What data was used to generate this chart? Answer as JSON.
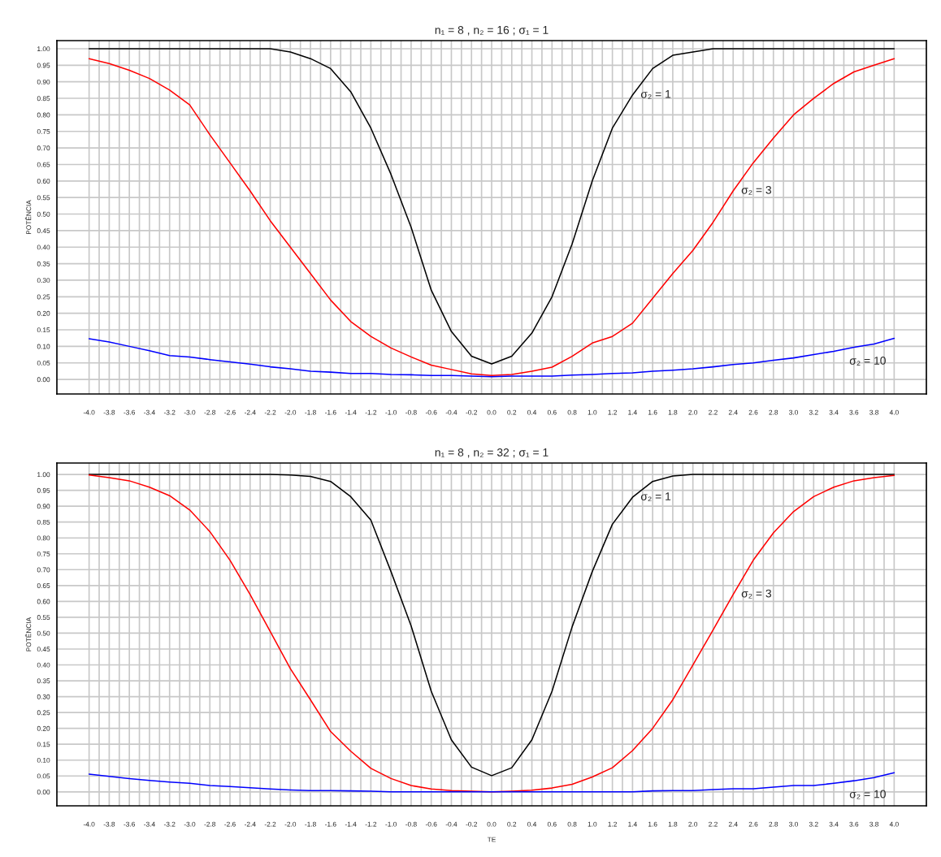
{
  "chart_data": [
    {
      "type": "line",
      "title": "n₁ = 8 , n₂ = 16 ; σ₁ = 1",
      "ylabel": "POTÊNCIA",
      "x": [
        -4.0,
        -3.8,
        -3.6,
        -3.4,
        -3.2,
        -3.0,
        -2.8,
        -2.6,
        -2.4,
        -2.2,
        -2.0,
        -1.8,
        -1.6,
        -1.4,
        -1.2,
        -1.0,
        -0.8,
        -0.6,
        -0.4,
        -0.2,
        0.0,
        0.2,
        0.4,
        0.6,
        0.8,
        1.0,
        1.2,
        1.4,
        1.6,
        1.8,
        2.0,
        2.2,
        2.4,
        2.6,
        2.8,
        3.0,
        3.2,
        3.4,
        3.6,
        3.8,
        4.0
      ],
      "series": [
        {
          "name": "σ₂ = 1",
          "color": "#000000",
          "values": [
            1.0,
            1.0,
            1.0,
            1.0,
            1.0,
            1.0,
            1.0,
            1.0,
            1.0,
            1.0,
            0.99,
            0.97,
            0.94,
            0.87,
            0.76,
            0.62,
            0.46,
            0.27,
            0.145,
            0.07,
            0.047,
            0.07,
            0.14,
            0.25,
            0.41,
            0.6,
            0.76,
            0.86,
            0.94,
            0.98,
            0.99,
            1.0,
            1.0,
            1.0,
            1.0,
            1.0,
            1.0,
            1.0,
            1.0,
            1.0,
            1.0
          ]
        },
        {
          "name": "σ₂ = 3",
          "color": "#ff0000",
          "values": [
            0.97,
            0.955,
            0.935,
            0.91,
            0.875,
            0.83,
            0.74,
            0.655,
            0.57,
            0.48,
            0.4,
            0.32,
            0.24,
            0.175,
            0.13,
            0.095,
            0.068,
            0.043,
            0.03,
            0.017,
            0.012,
            0.015,
            0.025,
            0.037,
            0.07,
            0.11,
            0.13,
            0.17,
            0.245,
            0.32,
            0.39,
            0.475,
            0.57,
            0.655,
            0.73,
            0.8,
            0.85,
            0.895,
            0.93,
            0.95,
            0.97
          ]
        },
        {
          "name": "σ₂ = 10",
          "color": "#0000ff",
          "values": [
            0.123,
            0.113,
            0.1,
            0.087,
            0.072,
            0.068,
            0.06,
            0.053,
            0.046,
            0.038,
            0.032,
            0.025,
            0.022,
            0.018,
            0.018,
            0.015,
            0.014,
            0.012,
            0.012,
            0.01,
            0.008,
            0.01,
            0.01,
            0.01,
            0.013,
            0.015,
            0.018,
            0.02,
            0.025,
            0.028,
            0.032,
            0.038,
            0.045,
            0.05,
            0.058,
            0.065,
            0.075,
            0.085,
            0.097,
            0.107,
            0.124
          ]
        }
      ],
      "xlim": [
        -4.32,
        4.32
      ],
      "ylim": [
        -0.044,
        1.0245
      ],
      "xticks": [
        {
          "value": -4.0,
          "label": "-4.0"
        },
        {
          "value": -3.9,
          "label": null
        },
        {
          "value": -3.8,
          "label": "-3.8"
        },
        {
          "value": -3.7,
          "label": null
        },
        {
          "value": -3.6,
          "label": "-3.6"
        },
        {
          "value": -3.5,
          "label": null
        },
        {
          "value": -3.4,
          "label": "-3.4"
        },
        {
          "value": -3.3,
          "label": null
        },
        {
          "value": -3.2,
          "label": "-3.2"
        },
        {
          "value": -3.1,
          "label": null
        },
        {
          "value": -3.0,
          "label": "-3.0"
        },
        {
          "value": -2.9,
          "label": null
        },
        {
          "value": -2.8,
          "label": "-2.8"
        },
        {
          "value": -2.7,
          "label": null
        },
        {
          "value": -2.6,
          "label": "-2.6"
        },
        {
          "value": -2.5,
          "label": null
        },
        {
          "value": -2.4,
          "label": "-2.4"
        },
        {
          "value": -2.3,
          "label": null
        },
        {
          "value": -2.2,
          "label": "-2.2"
        },
        {
          "value": -2.1,
          "label": null
        },
        {
          "value": -2.0,
          "label": "-2.0"
        },
        {
          "value": -1.9,
          "label": null
        },
        {
          "value": -1.8,
          "label": "-1.8"
        },
        {
          "value": -1.7,
          "label": null
        },
        {
          "value": -1.6,
          "label": "-1.6"
        },
        {
          "value": -1.5,
          "label": null
        },
        {
          "value": -1.4,
          "label": "-1.4"
        },
        {
          "value": -1.3,
          "label": null
        },
        {
          "value": -1.2,
          "label": "-1.2"
        },
        {
          "value": -1.1,
          "label": null
        },
        {
          "value": -1.0,
          "label": "-1.0"
        },
        {
          "value": -0.9,
          "label": null
        },
        {
          "value": -0.8,
          "label": "-0.8"
        },
        {
          "value": -0.7,
          "label": null
        },
        {
          "value": -0.6,
          "label": "-0.6"
        },
        {
          "value": -0.5,
          "label": null
        },
        {
          "value": -0.4,
          "label": "-0.4"
        },
        {
          "value": -0.3,
          "label": null
        },
        {
          "value": -0.2,
          "label": "-0.2"
        },
        {
          "value": -0.1,
          "label": null
        },
        {
          "value": 0.0,
          "label": "0.0"
        },
        {
          "value": 0.1,
          "label": null
        },
        {
          "value": 0.2,
          "label": "0.2"
        },
        {
          "value": 0.3,
          "label": null
        },
        {
          "value": 0.4,
          "label": "0.4"
        },
        {
          "value": 0.5,
          "label": null
        },
        {
          "value": 0.6,
          "label": "0.6"
        },
        {
          "value": 0.7,
          "label": null
        },
        {
          "value": 0.8,
          "label": "0.8"
        },
        {
          "value": 0.9,
          "label": null
        },
        {
          "value": 1.0,
          "label": "1.0"
        },
        {
          "value": 1.1,
          "label": null
        },
        {
          "value": 1.2,
          "label": "1.2"
        },
        {
          "value": 1.3,
          "label": null
        },
        {
          "value": 1.4,
          "label": "1.4"
        },
        {
          "value": 1.5,
          "label": null
        },
        {
          "value": 1.6,
          "label": "1.6"
        },
        {
          "value": 1.7,
          "label": null
        },
        {
          "value": 1.8,
          "label": "1.8"
        },
        {
          "value": 1.9,
          "label": null
        },
        {
          "value": 2.0,
          "label": "2.0"
        },
        {
          "value": 2.1,
          "label": null
        },
        {
          "value": 2.2,
          "label": "2.2"
        },
        {
          "value": 2.3,
          "label": null
        },
        {
          "value": 2.4,
          "label": "2.4"
        },
        {
          "value": 2.5,
          "label": null
        },
        {
          "value": 2.6,
          "label": "2.6"
        },
        {
          "value": 2.7,
          "label": null
        },
        {
          "value": 2.8,
          "label": "2.8"
        },
        {
          "value": 2.9,
          "label": null
        },
        {
          "value": 3.0,
          "label": "3.0"
        },
        {
          "value": 3.1,
          "label": null
        },
        {
          "value": 3.2,
          "label": "3.2"
        },
        {
          "value": 3.3,
          "label": null
        },
        {
          "value": 3.4,
          "label": "3.4"
        },
        {
          "value": 3.5,
          "label": null
        },
        {
          "value": 3.6,
          "label": "3.6"
        },
        {
          "value": 3.7,
          "label": null
        },
        {
          "value": 3.8,
          "label": "3.8"
        },
        {
          "value": 3.9,
          "label": null
        },
        {
          "value": 4.0,
          "label": "4.0"
        }
      ],
      "yticks": [
        {
          "value": 0.0,
          "label": "0.00"
        },
        {
          "value": 0.05,
          "label": "0.05"
        },
        {
          "value": 0.1,
          "label": "0.10"
        },
        {
          "value": 0.15,
          "label": "0.15"
        },
        {
          "value": 0.2,
          "label": "0.20"
        },
        {
          "value": 0.25,
          "label": "0.25"
        },
        {
          "value": 0.3,
          "label": "0.30"
        },
        {
          "value": 0.35,
          "label": "0.35"
        },
        {
          "value": 0.4,
          "label": "0.40"
        },
        {
          "value": 0.45,
          "label": "0.45"
        },
        {
          "value": 0.5,
          "label": "0.50"
        },
        {
          "value": 0.55,
          "label": "0.55"
        },
        {
          "value": 0.6,
          "label": "0.60"
        },
        {
          "value": 0.65,
          "label": "0.65"
        },
        {
          "value": 0.7,
          "label": "0.70"
        },
        {
          "value": 0.75,
          "label": "0.75"
        },
        {
          "value": 0.8,
          "label": "0.80"
        },
        {
          "value": 0.85,
          "label": "0.85"
        },
        {
          "value": 0.9,
          "label": "0.90"
        },
        {
          "value": 0.95,
          "label": "0.95"
        },
        {
          "value": 1.0,
          "label": "1.00"
        }
      ],
      "grid": true,
      "marker": "none",
      "line_style": "solid",
      "legend": false
    },
    {
      "type": "line",
      "title": "n₁ = 8 , n₂ = 32 ; σ₁ = 1",
      "ylabel": "POTÊNCIA",
      "xlabel": "TE",
      "x": [
        -4.0,
        -3.8,
        -3.6,
        -3.4,
        -3.2,
        -3.0,
        -2.8,
        -2.6,
        -2.4,
        -2.2,
        -2.0,
        -1.8,
        -1.6,
        -1.4,
        -1.2,
        -1.0,
        -0.8,
        -0.6,
        -0.4,
        -0.2,
        0.0,
        0.2,
        0.4,
        0.6,
        0.8,
        1.0,
        1.2,
        1.4,
        1.6,
        1.8,
        2.0,
        2.2,
        2.4,
        2.6,
        2.8,
        3.0,
        3.2,
        3.4,
        3.6,
        3.8,
        4.0
      ],
      "series": [
        {
          "name": "σ₂ = 1",
          "color": "#000000",
          "values": [
            1.0,
            1.0,
            1.0,
            1.0,
            1.0,
            1.0,
            1.0,
            1.0,
            1.0,
            1.0,
            0.998,
            0.994,
            0.978,
            0.93,
            0.856,
            0.694,
            0.523,
            0.317,
            0.164,
            0.078,
            0.051,
            0.076,
            0.164,
            0.317,
            0.52,
            0.694,
            0.843,
            0.928,
            0.978,
            0.995,
            1.0,
            1.0,
            1.0,
            1.0,
            1.0,
            1.0,
            1.0,
            1.0,
            1.0,
            1.0,
            1.0
          ]
        },
        {
          "name": "σ₂ = 3",
          "color": "#ff0000",
          "values": [
            0.998,
            0.99,
            0.98,
            0.96,
            0.933,
            0.888,
            0.82,
            0.73,
            0.622,
            0.505,
            0.388,
            0.29,
            0.19,
            0.128,
            0.074,
            0.042,
            0.02,
            0.009,
            0.004,
            0.002,
            0.0,
            0.002,
            0.005,
            0.012,
            0.024,
            0.047,
            0.076,
            0.13,
            0.2,
            0.29,
            0.4,
            0.51,
            0.622,
            0.73,
            0.816,
            0.883,
            0.93,
            0.96,
            0.98,
            0.99,
            0.997
          ]
        },
        {
          "name": "σ₂ = 10",
          "color": "#0000ff",
          "values": [
            0.056,
            0.049,
            0.042,
            0.036,
            0.031,
            0.027,
            0.02,
            0.017,
            0.013,
            0.009,
            0.006,
            0.004,
            0.004,
            0.003,
            0.002,
            0.0,
            0.0,
            0.0,
            0.0,
            0.0,
            0.0,
            0.0,
            0.0,
            0.0,
            0.0,
            0.0,
            0.0,
            0.0,
            0.003,
            0.004,
            0.004,
            0.007,
            0.01,
            0.01,
            0.015,
            0.02,
            0.02,
            0.027,
            0.035,
            0.045,
            0.06
          ]
        }
      ],
      "xlim": [
        -4.32,
        4.32
      ],
      "ylim": [
        -0.044,
        1.036
      ],
      "xticks": [
        {
          "value": -4.0,
          "label": "-4.0"
        },
        {
          "value": -3.9,
          "label": null
        },
        {
          "value": -3.8,
          "label": "-3.8"
        },
        {
          "value": -3.7,
          "label": null
        },
        {
          "value": -3.6,
          "label": "-3.6"
        },
        {
          "value": -3.5,
          "label": null
        },
        {
          "value": -3.4,
          "label": "-3.4"
        },
        {
          "value": -3.3,
          "label": null
        },
        {
          "value": -3.2,
          "label": "-3.2"
        },
        {
          "value": -3.1,
          "label": null
        },
        {
          "value": -3.0,
          "label": "-3.0"
        },
        {
          "value": -2.9,
          "label": null
        },
        {
          "value": -2.8,
          "label": "-2.8"
        },
        {
          "value": -2.7,
          "label": null
        },
        {
          "value": -2.6,
          "label": "-2.6"
        },
        {
          "value": -2.5,
          "label": null
        },
        {
          "value": -2.4,
          "label": "-2.4"
        },
        {
          "value": -2.3,
          "label": null
        },
        {
          "value": -2.2,
          "label": "-2.2"
        },
        {
          "value": -2.1,
          "label": null
        },
        {
          "value": -2.0,
          "label": "-2.0"
        },
        {
          "value": -1.9,
          "label": null
        },
        {
          "value": -1.8,
          "label": "-1.8"
        },
        {
          "value": -1.7,
          "label": null
        },
        {
          "value": -1.6,
          "label": "-1.6"
        },
        {
          "value": -1.5,
          "label": null
        },
        {
          "value": -1.4,
          "label": "-1.4"
        },
        {
          "value": -1.3,
          "label": null
        },
        {
          "value": -1.2,
          "label": "-1.2"
        },
        {
          "value": -1.1,
          "label": null
        },
        {
          "value": -1.0,
          "label": "-1.0"
        },
        {
          "value": -0.9,
          "label": null
        },
        {
          "value": -0.8,
          "label": "-0.8"
        },
        {
          "value": -0.7,
          "label": null
        },
        {
          "value": -0.6,
          "label": "-0.6"
        },
        {
          "value": -0.5,
          "label": null
        },
        {
          "value": -0.4,
          "label": "-0.4"
        },
        {
          "value": -0.3,
          "label": null
        },
        {
          "value": -0.2,
          "label": "-0.2"
        },
        {
          "value": -0.1,
          "label": null
        },
        {
          "value": 0.0,
          "label": "0.0"
        },
        {
          "value": 0.1,
          "label": null
        },
        {
          "value": 0.2,
          "label": "0.2"
        },
        {
          "value": 0.3,
          "label": null
        },
        {
          "value": 0.4,
          "label": "0.4"
        },
        {
          "value": 0.5,
          "label": null
        },
        {
          "value": 0.6,
          "label": "0.6"
        },
        {
          "value": 0.7,
          "label": null
        },
        {
          "value": 0.8,
          "label": "0.8"
        },
        {
          "value": 0.9,
          "label": null
        },
        {
          "value": 1.0,
          "label": "1.0"
        },
        {
          "value": 1.1,
          "label": null
        },
        {
          "value": 1.2,
          "label": "1.2"
        },
        {
          "value": 1.3,
          "label": null
        },
        {
          "value": 1.4,
          "label": "1.4"
        },
        {
          "value": 1.5,
          "label": null
        },
        {
          "value": 1.6,
          "label": "1.6"
        },
        {
          "value": 1.7,
          "label": null
        },
        {
          "value": 1.8,
          "label": "1.8"
        },
        {
          "value": 1.9,
          "label": null
        },
        {
          "value": 2.0,
          "label": "2.0"
        },
        {
          "value": 2.1,
          "label": null
        },
        {
          "value": 2.2,
          "label": "2.2"
        },
        {
          "value": 2.3,
          "label": null
        },
        {
          "value": 2.4,
          "label": "2.4"
        },
        {
          "value": 2.5,
          "label": null
        },
        {
          "value": 2.6,
          "label": "2.6"
        },
        {
          "value": 2.7,
          "label": null
        },
        {
          "value": 2.8,
          "label": "2.8"
        },
        {
          "value": 2.9,
          "label": null
        },
        {
          "value": 3.0,
          "label": "3.0"
        },
        {
          "value": 3.1,
          "label": null
        },
        {
          "value": 3.2,
          "label": "3.2"
        },
        {
          "value": 3.3,
          "label": null
        },
        {
          "value": 3.4,
          "label": "3.4"
        },
        {
          "value": 3.5,
          "label": null
        },
        {
          "value": 3.6,
          "label": "3.6"
        },
        {
          "value": 3.7,
          "label": null
        },
        {
          "value": 3.8,
          "label": "3.8"
        },
        {
          "value": 3.9,
          "label": null
        },
        {
          "value": 4.0,
          "label": "4.0"
        }
      ],
      "yticks": [
        {
          "value": 0.0,
          "label": "0.00"
        },
        {
          "value": 0.05,
          "label": "0.05"
        },
        {
          "value": 0.1,
          "label": "0.10"
        },
        {
          "value": 0.15,
          "label": "0.15"
        },
        {
          "value": 0.2,
          "label": "0.20"
        },
        {
          "value": 0.25,
          "label": "0.25"
        },
        {
          "value": 0.3,
          "label": "0.30"
        },
        {
          "value": 0.35,
          "label": "0.35"
        },
        {
          "value": 0.4,
          "label": "0.40"
        },
        {
          "value": 0.45,
          "label": "0.45"
        },
        {
          "value": 0.5,
          "label": "0.50"
        },
        {
          "value": 0.55,
          "label": "0.55"
        },
        {
          "value": 0.6,
          "label": "0.60"
        },
        {
          "value": 0.65,
          "label": "0.65"
        },
        {
          "value": 0.7,
          "label": "0.70"
        },
        {
          "value": 0.75,
          "label": "0.75"
        },
        {
          "value": 0.8,
          "label": "0.80"
        },
        {
          "value": 0.85,
          "label": "0.85"
        },
        {
          "value": 0.9,
          "label": "0.90"
        },
        {
          "value": 0.95,
          "label": "0.95"
        },
        {
          "value": 1.0,
          "label": "1.00"
        }
      ],
      "grid": true,
      "marker": "none",
      "line_style": "solid",
      "legend": false
    }
  ]
}
